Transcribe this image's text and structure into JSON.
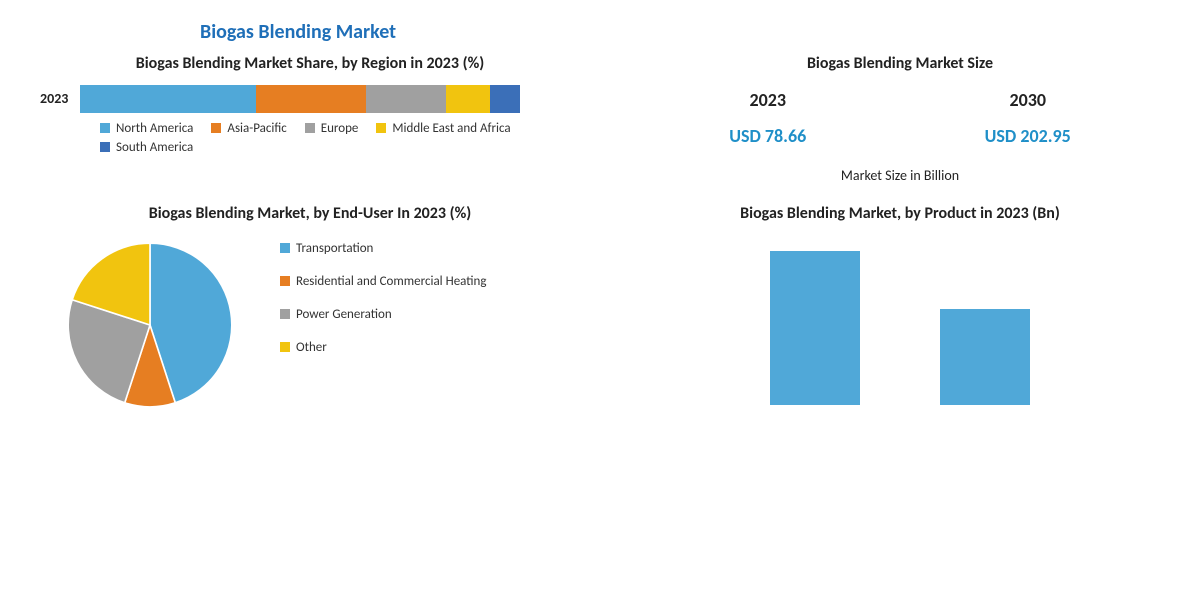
{
  "main_title": "Biogas Blending Market",
  "region_share": {
    "title": "Biogas Blending Market Share, by Region in 2023 (%)",
    "year_label": "2023",
    "segments": [
      {
        "name": "North America",
        "value": 40,
        "color": "#50a8d8"
      },
      {
        "name": "Asia-Pacific",
        "value": 25,
        "color": "#e67e22"
      },
      {
        "name": "Europe",
        "value": 18,
        "color": "#a0a0a0"
      },
      {
        "name": "Middle East and Africa",
        "value": 10,
        "color": "#f1c40f"
      },
      {
        "name": "South America",
        "value": 7,
        "color": "#3b6fb8"
      }
    ]
  },
  "market_size": {
    "title": "Biogas Blending Market Size",
    "years": [
      {
        "year": "2023",
        "value": "USD 78.66"
      },
      {
        "year": "2030",
        "value": "USD 202.95"
      }
    ],
    "note": "Market Size in Billion"
  },
  "end_user": {
    "title": "Biogas Blending Market, by End-User In 2023 (%)",
    "slices": [
      {
        "name": "Transportation",
        "value": 45,
        "color": "#50a8d8"
      },
      {
        "name": "Residential and Commercial Heating",
        "value": 10,
        "color": "#e67e22"
      },
      {
        "name": "Power Generation",
        "value": 25,
        "color": "#a0a0a0"
      },
      {
        "name": "Other",
        "value": 20,
        "color": "#f1c40f"
      }
    ]
  },
  "by_product": {
    "title": "Biogas Blending Market, by Product in 2023 (Bn)",
    "bars": [
      {
        "value": 48,
        "color": "#50a8d8"
      },
      {
        "value": 30,
        "color": "#50a8d8"
      }
    ],
    "max": 50
  },
  "title_color": "#1f6fb8",
  "value_color": "#1f8fc8",
  "text_color": "#222222",
  "background": "#ffffff"
}
